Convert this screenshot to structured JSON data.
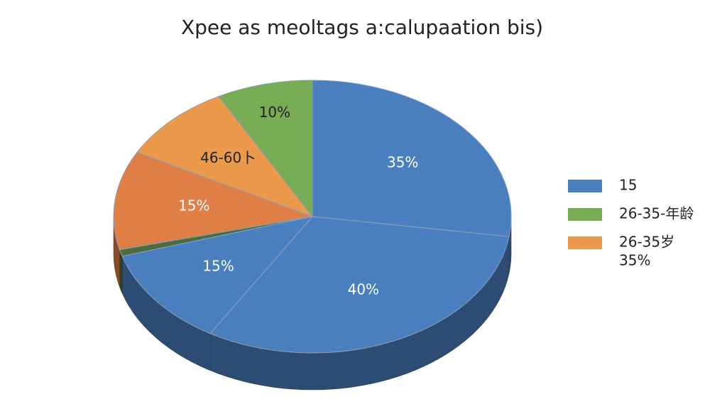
{
  "chart_data": {
    "type": "pie",
    "title": "Xpee as meoltags a:calupaation bis)",
    "slices": [
      {
        "value": 35,
        "label": "35%",
        "color": "#4a7fbf",
        "label_color": "#ffffff"
      },
      {
        "value": 40,
        "label": "40%",
        "color": "#4a7fbf",
        "label_color": "#ffffff"
      },
      {
        "value": 15,
        "label": "15%",
        "color": "#4a7fbf",
        "label_color": "#ffffff"
      },
      {
        "value": 1,
        "color": "#4f6b3a"
      },
      {
        "value": 15,
        "label": "15%",
        "color": "#e07f45",
        "label_color": "#ffffff"
      },
      {
        "value": 12,
        "label": "46-60卜",
        "color": "#eb9a4c",
        "label_color": "#222222"
      },
      {
        "value": 10,
        "label": "10%",
        "color": "#78ac55",
        "label_color": "#222222"
      }
    ],
    "legend": [
      {
        "lines": [
          "15"
        ],
        "color": "#4a7fbf"
      },
      {
        "lines": [
          "26-35-年龄"
        ],
        "color": "#78ac55"
      },
      {
        "lines": [
          "26-35岁",
          "35%"
        ],
        "color": "#eb9a4c"
      }
    ]
  }
}
